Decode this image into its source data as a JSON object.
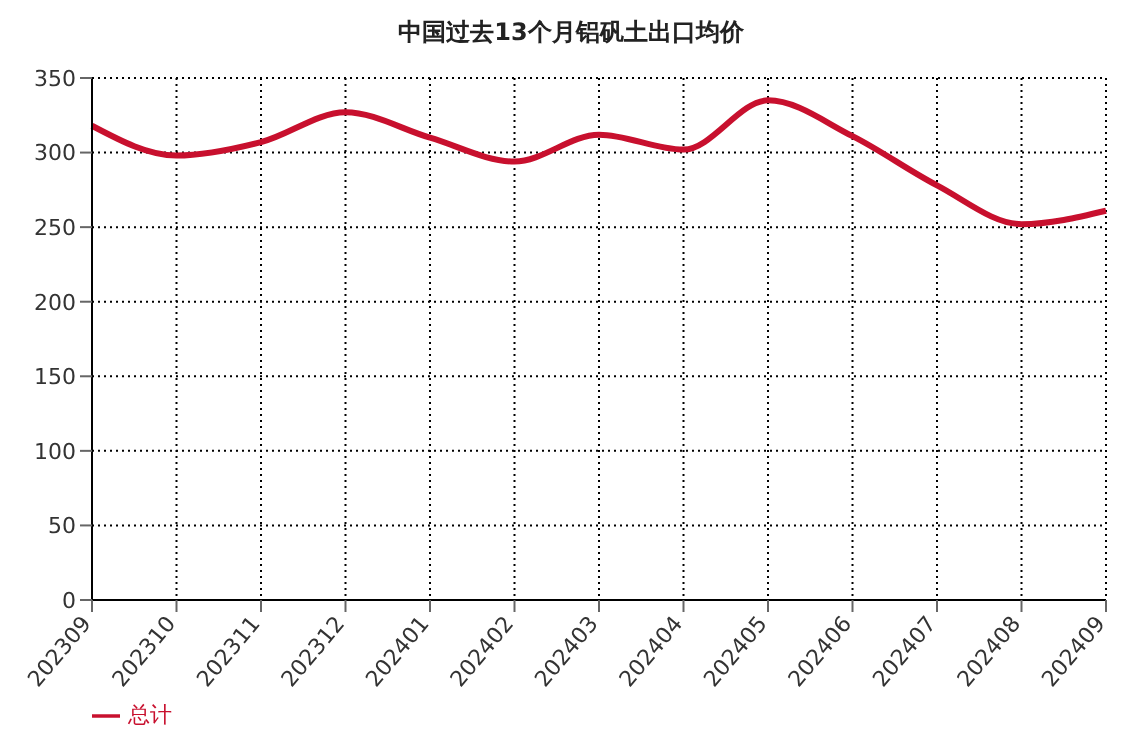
{
  "chart_data": {
    "type": "line",
    "title": "中国过去13个月铝矾土出口均价",
    "categories": [
      "202309",
      "202310",
      "202311",
      "202312",
      "202401",
      "202402",
      "202403",
      "202404",
      "202405",
      "202406",
      "202407",
      "202408",
      "202409"
    ],
    "series": [
      {
        "name": "总计",
        "color": "#c8102e",
        "values": [
          318,
          298,
          307,
          327,
          310,
          294,
          312,
          302,
          335,
          311,
          278,
          252,
          261
        ]
      }
    ],
    "ylim": [
      0,
      350
    ],
    "yticks": [
      0,
      50,
      100,
      150,
      200,
      250,
      300,
      350
    ],
    "grid": true,
    "legend": "bottom left",
    "marker": "none",
    "line_style": "solid"
  }
}
